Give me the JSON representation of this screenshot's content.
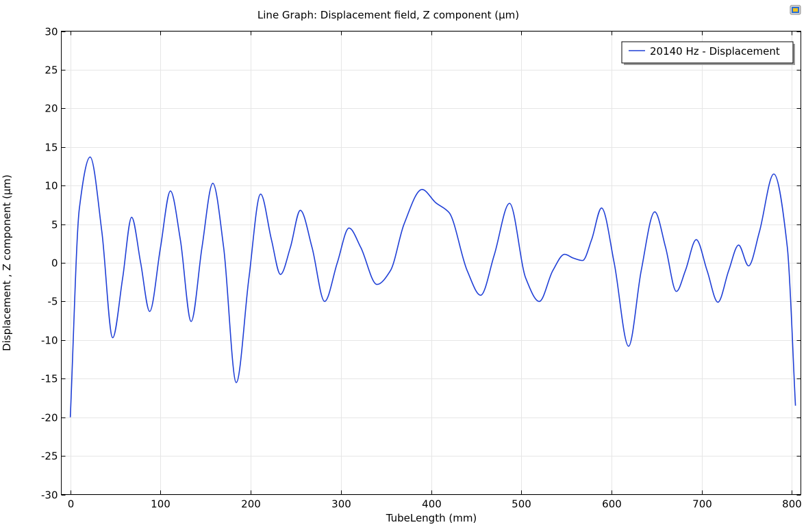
{
  "chart_data": {
    "type": "line",
    "title": "Line Graph: Displacement field, Z component (µm)",
    "xlabel": "TubeLength (mm)",
    "ylabel": "Displacement , Z component (µm)",
    "xlim": [
      -10,
      810
    ],
    "ylim": [
      -30,
      30
    ],
    "xticks": [
      0,
      100,
      200,
      300,
      400,
      500,
      600,
      700,
      800
    ],
    "yticks": [
      -30,
      -25,
      -20,
      -15,
      -10,
      -5,
      0,
      5,
      10,
      15,
      20,
      25,
      30
    ],
    "grid": true,
    "legend_position": "top-right",
    "series": [
      {
        "name": "20140 Hz - Displacement",
        "color": "#1f3fd6",
        "x": [
          0,
          10,
          22,
          35,
          47,
          58,
          68,
          78,
          88,
          100,
          111,
          122,
          134,
          146,
          158,
          170,
          184,
          198,
          211,
          223,
          233,
          244,
          255,
          268,
          282,
          296,
          309,
          322,
          340,
          355,
          370,
          390,
          405,
          420,
          440,
          455,
          470,
          487,
          505,
          520,
          535,
          548,
          558,
          568,
          578,
          589,
          603,
          619,
          633,
          648,
          660,
          672,
          682,
          694,
          706,
          718,
          730,
          741,
          752,
          764,
          780,
          795,
          804
        ],
        "y": [
          -20,
          7,
          13.7,
          4,
          -9.7,
          -2,
          5.9,
          0,
          -6.3,
          2,
          9.3,
          3,
          -7.6,
          2,
          10.3,
          2,
          -15.5,
          -2,
          8.9,
          3,
          -1.5,
          2,
          6.8,
          2,
          -5,
          0,
          4.5,
          2,
          -2.8,
          -1,
          5,
          9.5,
          7.8,
          6.5,
          -1,
          -4.2,
          1,
          7.7,
          -2,
          -5,
          -1,
          1.1,
          0.6,
          0.3,
          3,
          7.1,
          0,
          -10.8,
          -1,
          6.6,
          2,
          -3.7,
          -1,
          3,
          -1,
          -5.1,
          -1,
          2.3,
          -0.4,
          4,
          11.5,
          2,
          -18.5
        ]
      }
    ]
  },
  "ui": {
    "export_icon": "image-export-icon"
  }
}
